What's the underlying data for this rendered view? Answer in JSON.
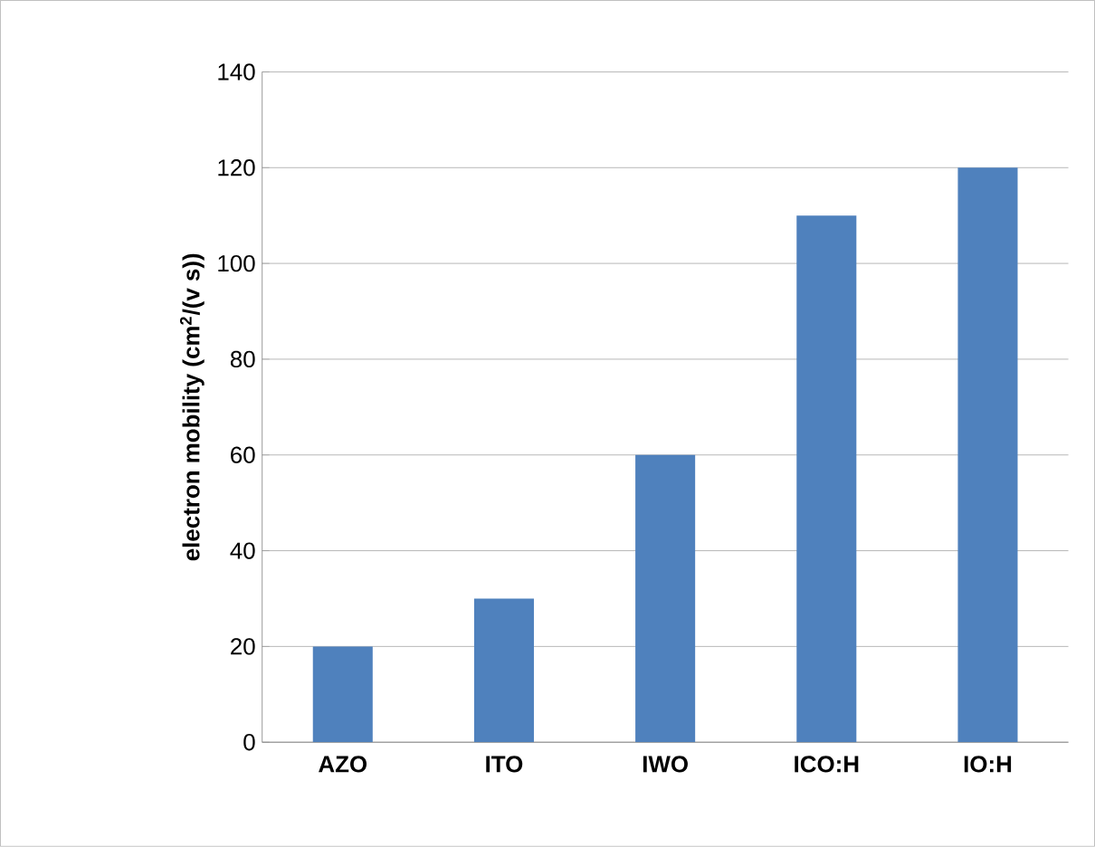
{
  "chart_data": {
    "type": "bar",
    "ylabel": "electron mobility (cm$^{2}$/(v s))",
    "categories": [
      "AZO",
      "ITO",
      "IWO",
      "ICO:H",
      "IO:H"
    ],
    "values": [
      20,
      30,
      60,
      110,
      120
    ],
    "color": "#4f81bd",
    "ylim": [
      0,
      140
    ],
    "yticks": [
      0,
      20,
      40,
      60,
      80,
      100,
      120,
      140
    ],
    "grid": "y"
  }
}
